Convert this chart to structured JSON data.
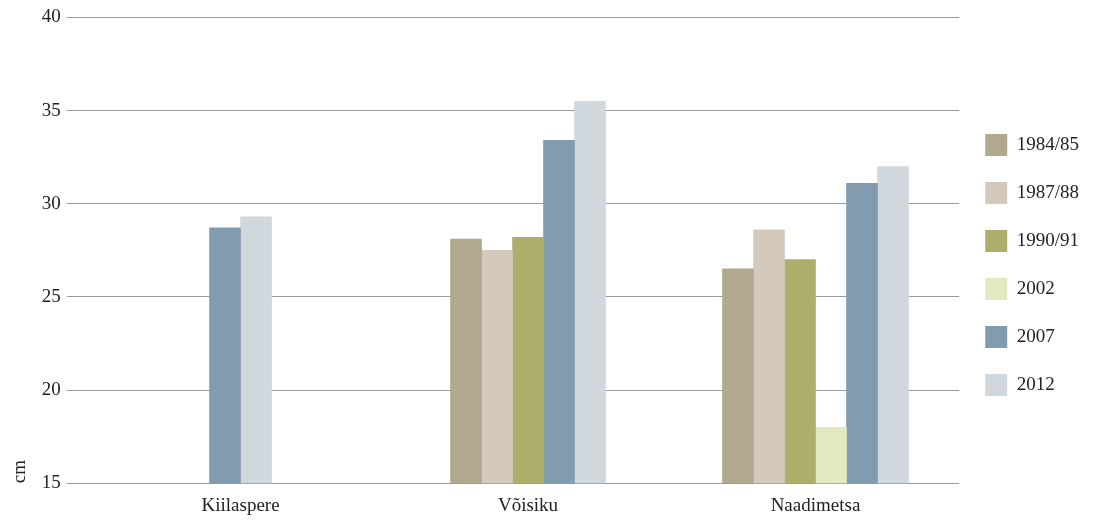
{
  "chart_data": {
    "type": "bar",
    "ylabel": "cm",
    "categories": [
      "Kiilaspere",
      "Võisiku",
      "Naadimetsa"
    ],
    "series": [
      {
        "name": "1984/85",
        "color": "#b0a98f",
        "values": [
          null,
          28.1,
          26.5
        ]
      },
      {
        "name": "1987/88",
        "color": "#d3cabc",
        "values": [
          null,
          27.5,
          28.6
        ]
      },
      {
        "name": "1990/91",
        "color": "#adae6a",
        "values": [
          null,
          28.2,
          27.0
        ]
      },
      {
        "name": "2002",
        "color": "#e2e8c0",
        "values": [
          null,
          null,
          18.0
        ]
      },
      {
        "name": "2007",
        "color": "#839bae",
        "values": [
          28.7,
          33.4,
          31.1
        ]
      },
      {
        "name": "2012",
        "color": "#d0d8de",
        "values": [
          29.3,
          35.5,
          32.0
        ]
      }
    ],
    "ylim": [
      15,
      40
    ],
    "yticks": [
      15,
      20,
      25,
      30,
      35,
      40
    ],
    "grid": "y",
    "legend": "right"
  }
}
